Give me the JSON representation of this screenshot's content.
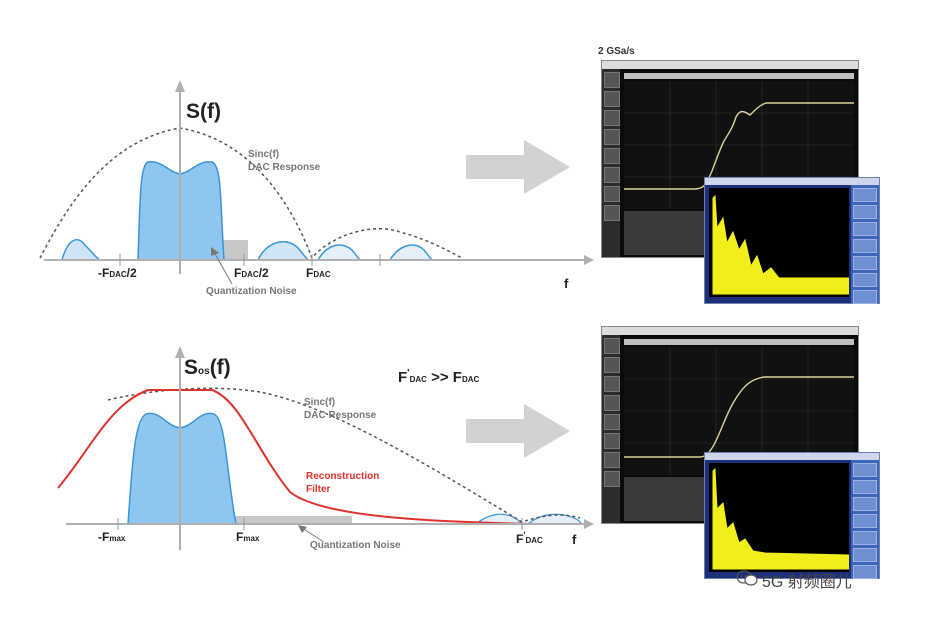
{
  "top_panel": {
    "y_label_main": "S(f)",
    "sinc_label_line1": "Sinc(f)",
    "sinc_label_line2": "DAC Response",
    "tick_neg_half_main": "-F",
    "tick_neg_half_sub": "DAC",
    "tick_neg_half_tail": "/2",
    "tick_half_main": "F",
    "tick_half_sub": "DAC",
    "tick_half_tail": "/2",
    "tick_fdac_main": "F",
    "tick_fdac_sub": "DAC",
    "x_label": "f",
    "noise_label": "Quantization Noise",
    "scope_rate_label": "2 GSa/s"
  },
  "bottom_panel": {
    "y_label_main": "S",
    "y_label_sub": "os",
    "y_label_tail": "(f)",
    "equation_left_main": "F",
    "equation_left_sup": "'",
    "equation_left_sub": "DAC",
    "equation_op": " >> ",
    "equation_right_main": "F",
    "equation_right_sub": "DAC",
    "sinc_label_line1": "Sinc(f)",
    "sinc_label_line2": "DAC Response",
    "recon_label_line1": "Reconstruction",
    "recon_label_line2": "Filter",
    "tick_neg_max_main": "-F",
    "tick_neg_max_sub": "max",
    "tick_max_main": "F",
    "tick_max_sub": "max",
    "tick_fdac_main": "F",
    "tick_fdac_sup": "'",
    "tick_fdac_sub": "DAC",
    "x_label": "f",
    "noise_label": "Quantization Noise"
  },
  "watermark": {
    "text": "5G 射频圈儿",
    "icon": "wechat-icon"
  },
  "colors": {
    "spectrum_fill": "#5aa8e0",
    "sinc_dash": "#555555",
    "recon_filter": "#e0322d",
    "noise_box": "#c8c8c8",
    "arrow": "#d2d2d2",
    "trace_yellow": "#f2ee1a"
  },
  "icons": [
    "right-arrow-icon",
    "wechat-icon"
  ]
}
